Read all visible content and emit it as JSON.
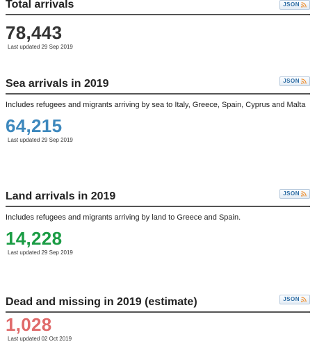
{
  "json_button": {
    "label": "JSON",
    "icon": "rss-icon",
    "color": "#2e6da4"
  },
  "sections": [
    {
      "title": "Total arrivals",
      "description": "",
      "value": "78,443",
      "value_color": "#333333",
      "updated": "Last updated 29 Sep 2019"
    },
    {
      "title": "Sea arrivals in 2019",
      "description": "Includes refugees and migrants arriving by sea to Italy, Greece, Spain, Cyprus and Malta",
      "value": "64,215",
      "value_color": "#3d88bd",
      "updated": "Last updated 29 Sep 2019"
    },
    {
      "title": "Land arrivals in 2019",
      "description": "Includes refugees and migrants arriving by land to Greece and Spain.",
      "value": "14,228",
      "value_color": "#1a9c44",
      "updated": "Last updated 29 Sep 2019"
    },
    {
      "title": "Dead and missing in 2019 (estimate)",
      "description": "",
      "value": "1,028",
      "value_color": "#e06a6a",
      "updated": "Last updated 02 Oct 2019"
    }
  ]
}
